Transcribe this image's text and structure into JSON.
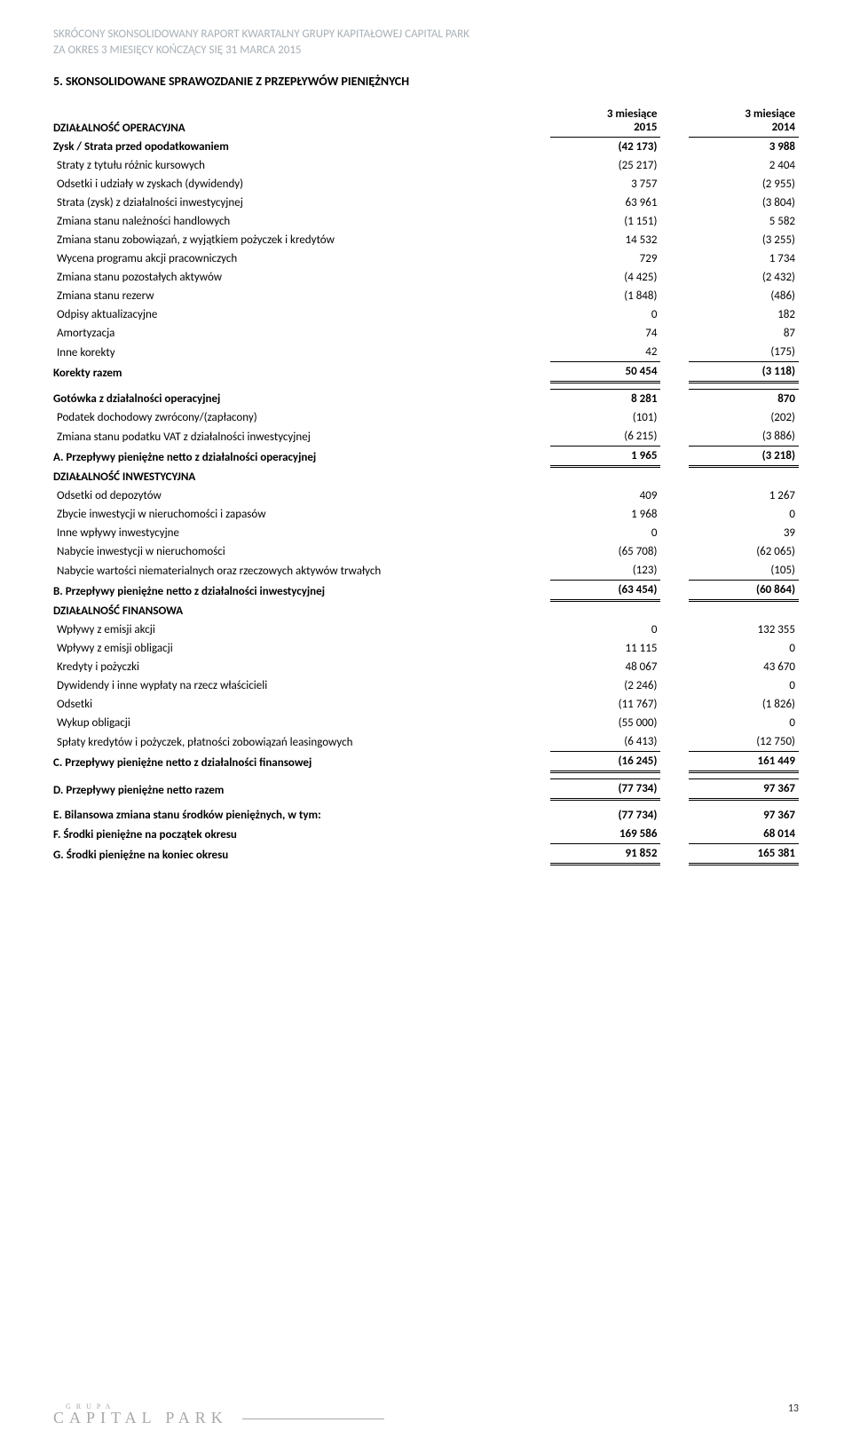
{
  "header": {
    "line1": "SKRÓCONY SKONSOLIDOWANY RAPORT KWARTALNY GRUPY KAPITAŁOWEJ CAPITAL PARK",
    "line2": "ZA OKRES 3 MIESIĘCY KOŃCZĄCY SIĘ 31 MARCA 2015"
  },
  "section_title": "5.   SKONSOLIDOWANE SPRAWOZDANIE Z PRZEPŁYWÓW PIENIĘŻNYCH",
  "columns": {
    "c1_line1": "3 miesiące",
    "c1_line2": "2015",
    "c2_line1": "3 miesiące",
    "c2_line2": "2014"
  },
  "op_heading": "DZIAŁALNOŚĆ OPERACYJNA",
  "op_rows": [
    {
      "label": "Zysk / Strata przed opodatkowaniem",
      "v1": "(42 173)",
      "v2": "3 988",
      "bold": true
    },
    {
      "label": "Straty z tytułu różnic kursowych",
      "v1": "(25 217)",
      "v2": "2 404"
    },
    {
      "label": "Odsetki i udziały w zyskach (dywidendy)",
      "v1": "3 757",
      "v2": "(2 955)"
    },
    {
      "label": "Strata (zysk) z działalności inwestycyjnej",
      "v1": "63 961",
      "v2": "(3 804)"
    },
    {
      "label": "Zmiana stanu należności handlowych",
      "v1": "(1 151)",
      "v2": "5 582"
    },
    {
      "label": "Zmiana stanu zobowiązań, z wyjątkiem pożyczek i kredytów",
      "v1": "14 532",
      "v2": "(3 255)"
    },
    {
      "label": "Wycena programu akcji pracowniczych",
      "v1": "729",
      "v2": "1 734"
    },
    {
      "label": "Zmiana stanu pozostałych aktywów",
      "v1": "(4 425)",
      "v2": "(2 432)"
    },
    {
      "label": "Zmiana stanu rezerw",
      "v1": "(1 848)",
      "v2": "(486)"
    },
    {
      "label": "Odpisy aktualizacyjne",
      "v1": "0",
      "v2": "182"
    },
    {
      "label": "Amortyzacja",
      "v1": "74",
      "v2": "87"
    },
    {
      "label": "Inne korekty",
      "v1": "42",
      "v2": "(175)"
    },
    {
      "label": "Korekty razem",
      "v1": "50 454",
      "v2": "(3 118)",
      "bold": true,
      "total": true
    }
  ],
  "op_sub": [
    {
      "label": "Gotówka z działalności operacyjnej",
      "v1": "8 281",
      "v2": "870",
      "bold": true,
      "topline": true
    },
    {
      "label": "Podatek dochodowy zwrócony/(zapłacony)",
      "v1": "(101)",
      "v2": "(202)"
    },
    {
      "label": "Zmiana stanu podatku VAT z działalności inwestycyjnej",
      "v1": "(6 215)",
      "v2": "(3 886)"
    },
    {
      "label": "A. Przepływy pieniężne netto z działalności operacyjnej",
      "v1": "1 965",
      "v2": "(3 218)",
      "bold": true,
      "total": true
    }
  ],
  "inv_heading": "DZIAŁALNOŚĆ INWESTYCYJNA",
  "inv_rows": [
    {
      "label": "Odsetki od depozytów",
      "v1": "409",
      "v2": "1 267"
    },
    {
      "label": "Zbycie inwestycji w nieruchomości i zapasów",
      "v1": "1 968",
      "v2": "0"
    },
    {
      "label": "Inne wpływy inwestycyjne",
      "v1": "0",
      "v2": "39"
    },
    {
      "label": "Nabycie inwestycji w nieruchomości",
      "v1": "(65 708)",
      "v2": "(62 065)"
    },
    {
      "label": "Nabycie wartości niematerialnych oraz rzeczowych aktywów trwałych",
      "v1": "(123)",
      "v2": "(105)"
    },
    {
      "label": "B. Przepływy pieniężne netto z działalności inwestycyjnej",
      "v1": "(63 454)",
      "v2": "(60 864)",
      "bold": true,
      "total": true
    }
  ],
  "fin_heading": "DZIAŁALNOŚĆ FINANSOWA",
  "fin_rows": [
    {
      "label": "Wpływy z emisji akcji",
      "v1": "0",
      "v2": "132 355"
    },
    {
      "label": "Wpływy z emisji obligacji",
      "v1": "11 115",
      "v2": "0"
    },
    {
      "label": "Kredyty i pożyczki",
      "v1": "48 067",
      "v2": "43 670"
    },
    {
      "label": "Dywidendy i inne wypłaty na rzecz właścicieli",
      "v1": "(2 246)",
      "v2": "0"
    },
    {
      "label": "Odsetki",
      "v1": "(11 767)",
      "v2": "(1 826)"
    },
    {
      "label": "Wykup obligacji",
      "v1": "(55 000)",
      "v2": "0"
    },
    {
      "label": "Spłaty kredytów i pożyczek, płatności zobowiązań leasingowych",
      "v1": "(6 413)",
      "v2": "(12 750)"
    },
    {
      "label": "C. Przepływy pieniężne netto z działalności finansowej",
      "v1": "(16 245)",
      "v2": "161 449",
      "bold": true,
      "total": true
    }
  ],
  "summary": [
    {
      "label": "D. Przepływy pieniężne netto razem",
      "v1": "(77 734)",
      "v2": "97 367",
      "bold": true,
      "total": true,
      "gap_before": true
    },
    {
      "label": "E. Bilansowa zmiana stanu środków pieniężnych, w tym:",
      "v1": "(77 734)",
      "v2": "97 367",
      "bold": true,
      "gap_before": true
    },
    {
      "label": "F. Środki pieniężne na początek okresu",
      "v1": "169 586",
      "v2": "68 014",
      "bold": true,
      "underline": true
    },
    {
      "label": "G. Środki pieniężne na koniec okresu",
      "v1": "91 852",
      "v2": "165 381",
      "bold": true,
      "total": true
    }
  ],
  "footer": {
    "grupa": "G R U P A",
    "logo": "CAPITAL PARK",
    "page_num": "13"
  }
}
